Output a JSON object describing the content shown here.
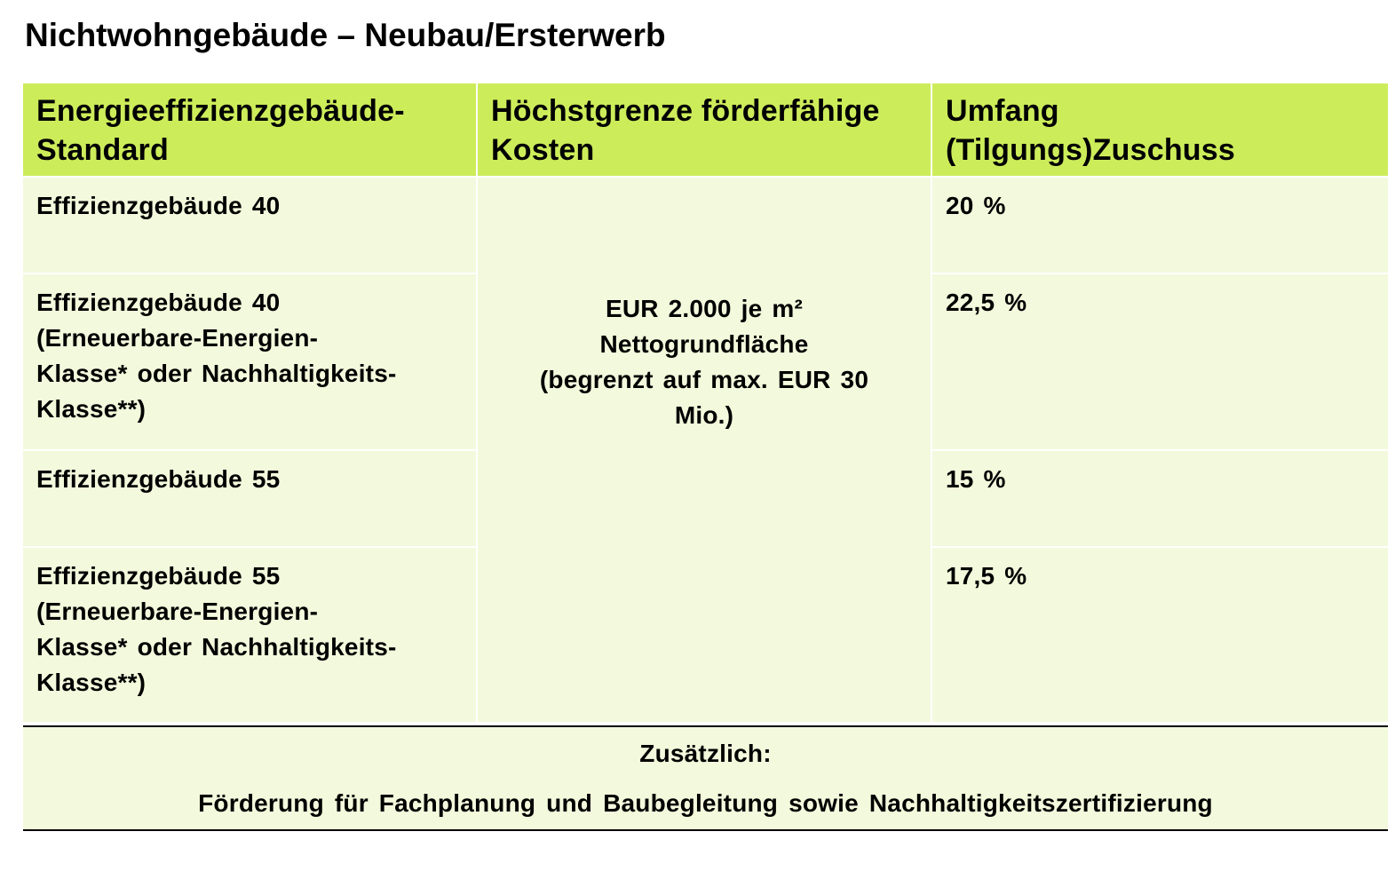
{
  "title": "Nichtwohngebäude – Neubau/Ersterwerb",
  "table": {
    "headers": [
      [
        "Energieeffizienzgebäude-",
        "Standard"
      ],
      [
        "Höchstgrenze förderfähige",
        "Kosten"
      ],
      [
        "Umfang",
        "(Tilgungs)Zuschuss"
      ]
    ],
    "rows": [
      {
        "standard": [
          "Effizienzgebäude 40"
        ],
        "zuschuss": "20 %"
      },
      {
        "standard": [
          "Effizienzgebäude 40",
          "(Erneuerbare-Energien-",
          "Klasse* oder Nachhaltigkeits-",
          "Klasse**)"
        ],
        "zuschuss": "22,5 %"
      },
      {
        "standard": [
          "Effizienzgebäude 55"
        ],
        "zuschuss": "15 %"
      },
      {
        "standard": [
          "Effizienzgebäude 55",
          "(Erneuerbare-Energien-",
          "Klasse* oder Nachhaltigkeits-",
          "Klasse**)"
        ],
        "zuschuss": "17,5 %"
      }
    ],
    "max_costs": [
      "EUR 2.000 je m²",
      "Nettogrundfläche",
      "(begrenzt auf max. EUR 30",
      "Mio.)"
    ]
  },
  "footer": {
    "line1": "Zusätzlich:",
    "line2": "Förderung für Fachplanung und Baubegleitung sowie Nachhaltigkeitszertifizierung"
  }
}
